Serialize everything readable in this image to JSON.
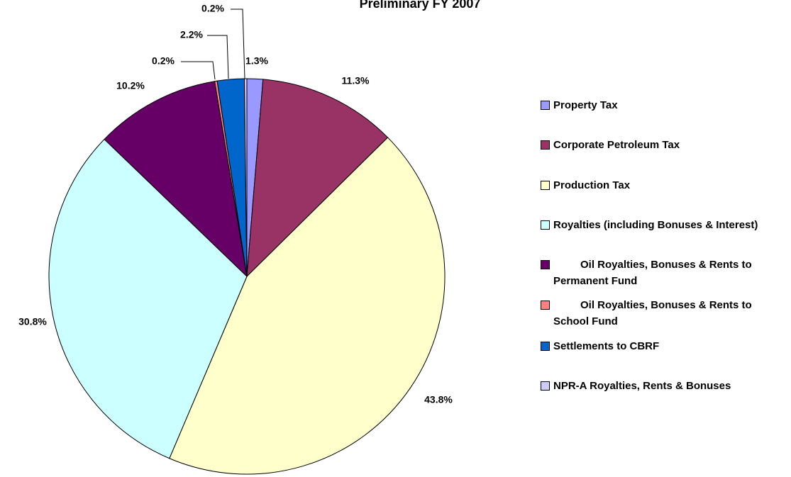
{
  "chart_data": {
    "type": "pie",
    "title": "Preliminary FY 2007",
    "categories": [
      "Property Tax",
      "Corporate Petroleum Tax",
      "Production Tax",
      "Royalties (including Bonuses & Interest)",
      "Oil Royalties, Bonuses & Rents to Permanent Fund",
      "Oil Royalties, Bonuses & Rents to School Fund",
      "Settlements to CBRF",
      "NPR-A Royalties, Rents & Bonuses"
    ],
    "values": [
      1.3,
      11.3,
      43.8,
      30.8,
      10.2,
      0.2,
      2.2,
      0.2
    ],
    "value_labels": [
      "1.3%",
      "11.3%",
      "43.8%",
      "30.8%",
      "10.2%",
      "0.2%",
      "2.2%",
      "0.2%"
    ],
    "colors": [
      "#9999ff",
      "#993366",
      "#ffffcc",
      "#ccffff",
      "#660066",
      "#ff8080",
      "#0066cc",
      "#ccccff"
    ],
    "legend": "right"
  }
}
